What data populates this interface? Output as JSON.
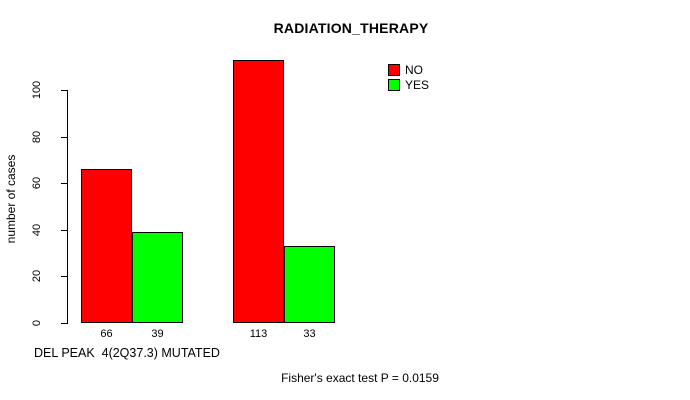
{
  "chart_data": {
    "type": "bar",
    "title": "RADIATION_THERAPY",
    "ylabel": "number of cases",
    "xlabel": "DEL PEAK  4(2Q37.3) MUTATED",
    "ylim": [
      0,
      113
    ],
    "yticks": [
      0,
      20,
      40,
      60,
      80,
      100
    ],
    "grid": false,
    "legend_position": "top-right",
    "series": [
      {
        "name": "NO",
        "color": "#ff0000",
        "values": [
          66,
          113
        ]
      },
      {
        "name": "YES",
        "color": "#00ff00",
        "values": [
          39,
          33
        ]
      }
    ],
    "bar_value_labels": [
      [
        66,
        39
      ],
      [
        113,
        33
      ]
    ],
    "annotation": "Fisher's exact test P = 0.0159"
  }
}
